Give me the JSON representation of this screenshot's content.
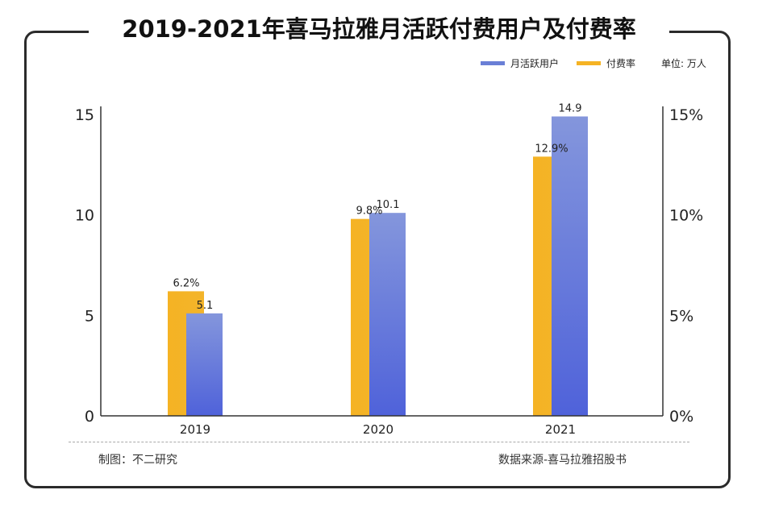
{
  "chart_data": {
    "type": "bar",
    "title": "2019-2021年喜马拉雅月活跃付费用户及付费率",
    "categories": [
      "2019",
      "2020",
      "2021"
    ],
    "series": [
      {
        "name": "付费率",
        "axis": "right",
        "values": [
          6.2,
          9.8,
          12.9
        ],
        "labels": [
          "6.2%",
          "9.8%",
          "12.9%"
        ],
        "color": "#F5B324"
      },
      {
        "name": "月活跃用户",
        "axis": "left",
        "values": [
          5.1,
          10.1,
          14.9
        ],
        "labels": [
          "5.1",
          "10.1",
          "14.9"
        ],
        "color": "#5A6FD8"
      }
    ],
    "left_axis": {
      "ylim": [
        0,
        15
      ],
      "ticks": [
        "0",
        "5",
        "10",
        "15"
      ]
    },
    "right_axis": {
      "ylim": [
        0,
        15
      ],
      "ticks": [
        "0%",
        "5%",
        "10%",
        "15%"
      ]
    },
    "unit": "单位: 万人",
    "legend": "top-right",
    "grid": false
  },
  "footer": {
    "left": "制图：不二研究",
    "right": "数据来源-喜马拉雅招股书"
  }
}
